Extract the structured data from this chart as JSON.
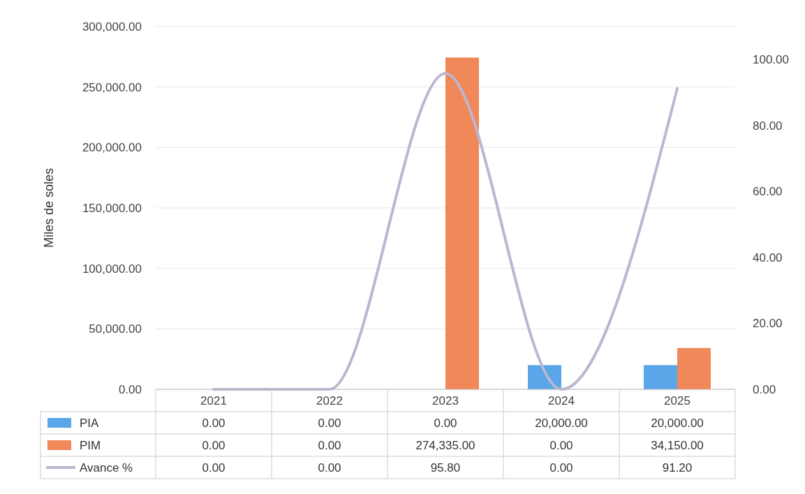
{
  "chart_data": {
    "type": "bar",
    "ylabel": "Miles de soles",
    "categories": [
      "2021",
      "2022",
      "2023",
      "2024",
      "2025"
    ],
    "series": [
      {
        "name": "PIA",
        "color": "#5aa6e8",
        "values": [
          0,
          0,
          0,
          20000,
          20000
        ],
        "value_labels": [
          "0.00",
          "0.00",
          "0.00",
          "20,000.00",
          "20,000.00"
        ]
      },
      {
        "name": "PIM",
        "color": "#f0885a",
        "values": [
          0,
          0,
          274335,
          0,
          34150
        ],
        "value_labels": [
          "0.00",
          "0.00",
          "274,335.00",
          "0.00",
          "34,150.00"
        ]
      },
      {
        "name": "Avance %",
        "type": "line",
        "axis": "y2",
        "color": "#bbb7d2",
        "values": [
          0,
          0,
          95.8,
          0,
          91.2
        ],
        "value_labels": [
          "0.00",
          "0.00",
          "95.80",
          "0.00",
          "91.20"
        ]
      }
    ],
    "ylim": [
      0,
      300000
    ],
    "yticks": [
      {
        "value": 0,
        "label": "0.00"
      },
      {
        "value": 50000,
        "label": "50,000.00"
      },
      {
        "value": 100000,
        "label": "100,000.00"
      },
      {
        "value": 150000,
        "label": "150,000.00"
      },
      {
        "value": 200000,
        "label": "200,000.00"
      },
      {
        "value": 250000,
        "label": "250,000.00"
      },
      {
        "value": 300000,
        "label": "300,000.00"
      }
    ],
    "y2lim": [
      0,
      110
    ],
    "y2ticks": [
      {
        "value": 0,
        "label": "0.00"
      },
      {
        "value": 20,
        "label": "20.00"
      },
      {
        "value": 40,
        "label": "40.00"
      },
      {
        "value": 60,
        "label": "60.00"
      },
      {
        "value": 80,
        "label": "80.00"
      },
      {
        "value": 100,
        "label": "100.00"
      }
    ],
    "grid": "y",
    "legend": "bottom",
    "marker": "none",
    "line_style": "solid"
  }
}
